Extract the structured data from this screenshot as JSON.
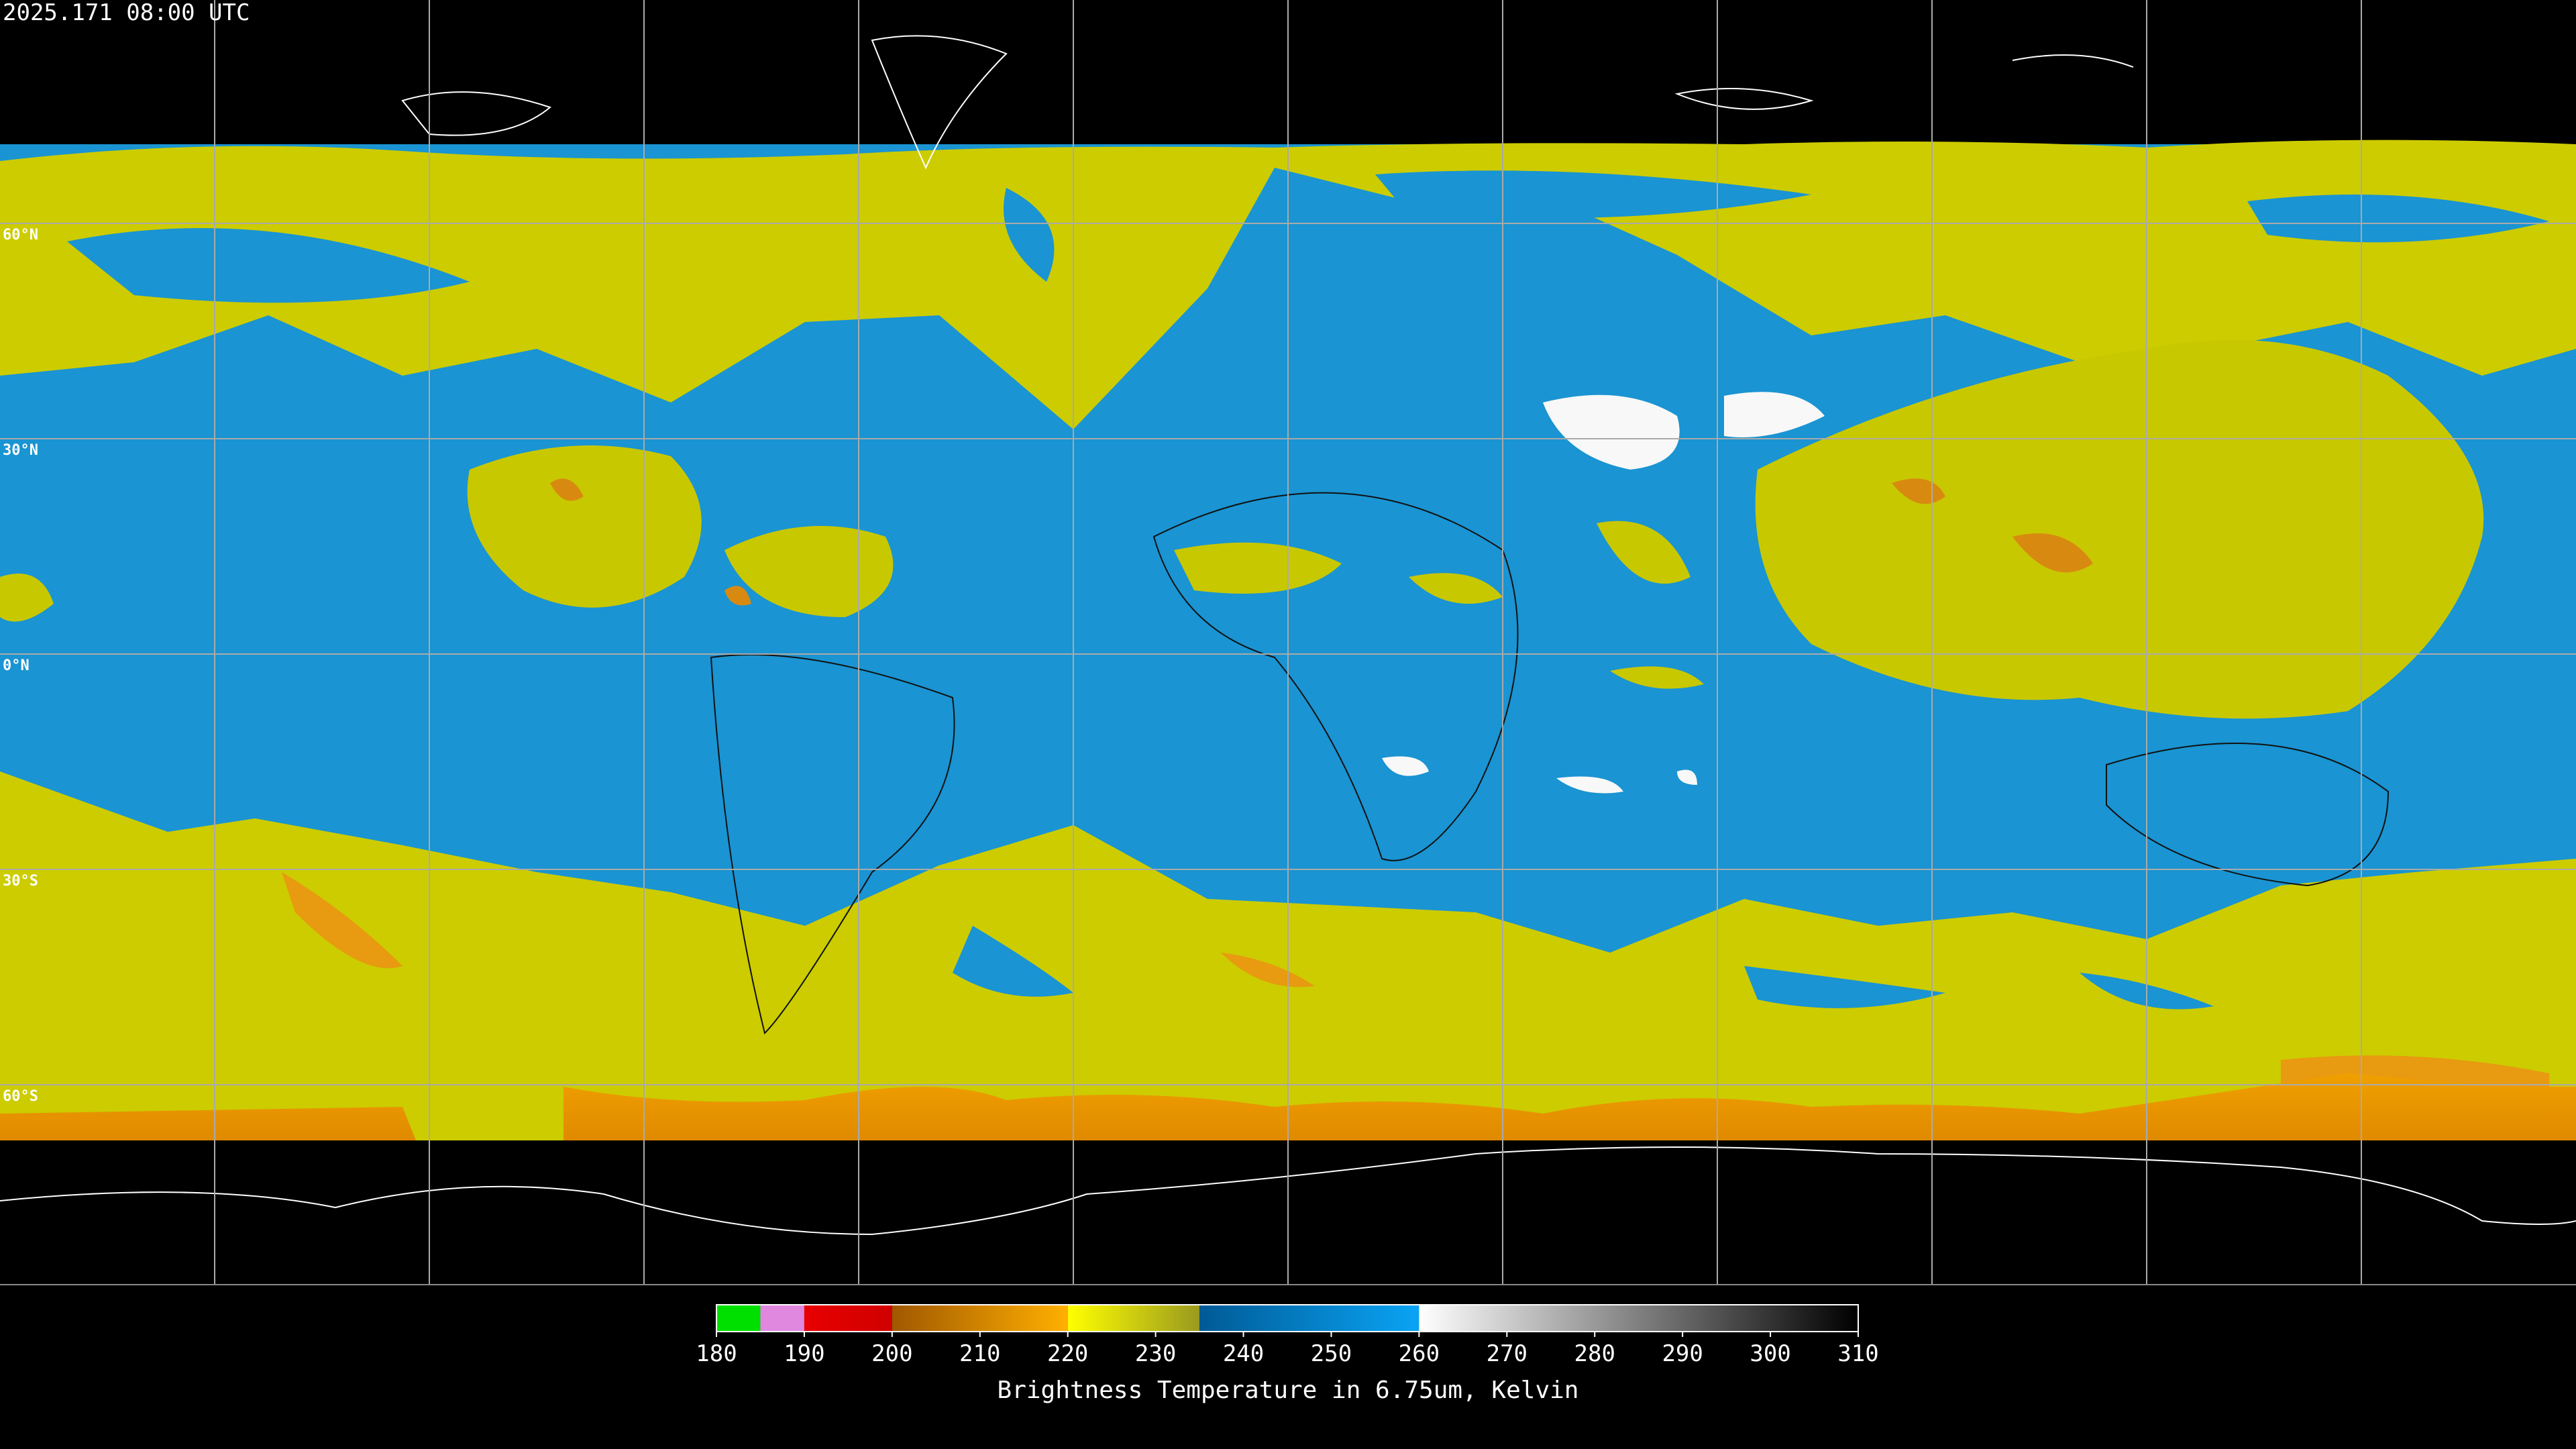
{
  "timestamp": "2025.171 08:00 UTC",
  "latitudes": [
    {
      "value": 60,
      "label": "60°N"
    },
    {
      "value": 30,
      "label": "30°N"
    },
    {
      "value": 0,
      "label": "0°N"
    },
    {
      "value": -30,
      "label": "30°S"
    },
    {
      "value": -60,
      "label": "60°S"
    }
  ],
  "colorbar": {
    "label": "Brightness Temperature in 6.75um, Kelvin",
    "lim": [
      180,
      310
    ],
    "ticks": [
      180,
      190,
      200,
      210,
      220,
      230,
      240,
      250,
      260,
      270,
      280,
      290,
      300,
      310
    ],
    "segments": [
      {
        "from": 180,
        "to": 185,
        "colors": [
          "#00e000",
          "#00e000"
        ]
      },
      {
        "from": 185,
        "to": 190,
        "colors": [
          "#e088e0",
          "#e088e0"
        ]
      },
      {
        "from": 190,
        "to": 200,
        "colors": [
          "#e80000",
          "#d00000"
        ]
      },
      {
        "from": 200,
        "to": 220,
        "colors": [
          "#a05800",
          "#ffb000"
        ]
      },
      {
        "from": 220,
        "to": 235,
        "colors": [
          "#ffff00",
          "#9a9a20"
        ]
      },
      {
        "from": 235,
        "to": 260,
        "colors": [
          "#005a96",
          "#0aa4f4"
        ]
      },
      {
        "from": 260,
        "to": 310,
        "colors": [
          "#ffffff",
          "#000000"
        ]
      }
    ]
  }
}
